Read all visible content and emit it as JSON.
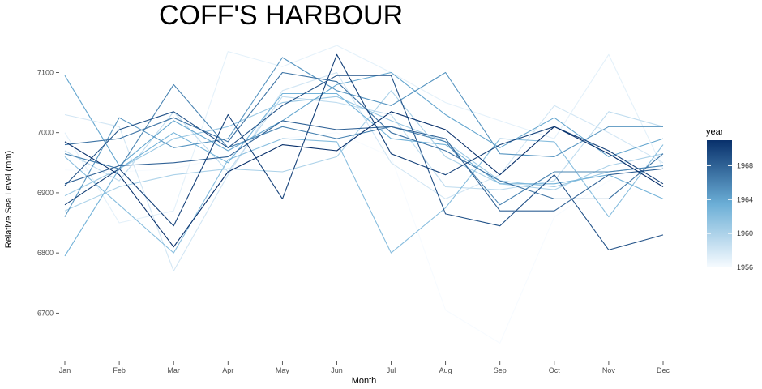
{
  "chart_data": {
    "type": "line",
    "title": "COFF'S HARBOUR",
    "xlabel": "Month",
    "ylabel": "Relative Sea Level (mm)",
    "categories": [
      "Jan",
      "Feb",
      "Mar",
      "Apr",
      "May",
      "Jun",
      "Jul",
      "Aug",
      "Sep",
      "Oct",
      "Nov",
      "Dec"
    ],
    "yticks": [
      6700,
      6800,
      6900,
      7000,
      7100
    ],
    "ylim": [
      6625,
      7160
    ],
    "grid": false,
    "legend": {
      "title": "year",
      "placement": "right",
      "type": "colorbar",
      "min": 1956,
      "max": 1971,
      "ticks": [
        1956,
        1960,
        1964,
        1968
      ],
      "color_low": "#f7fbff",
      "color_high": "#08306b"
    },
    "series": [
      {
        "year": 1956,
        "values": [
          6938,
          6935,
          6940,
          6960,
          6990,
          7000,
          6960,
          6705,
          6650,
          6860,
          6920,
          6960
        ]
      },
      {
        "year": 1957,
        "values": [
          7000,
          6850,
          6870,
          7135,
          7110,
          7145,
          7100,
          7050,
          7020,
          6990,
          7130,
          6940
        ]
      },
      {
        "year": 1958,
        "values": [
          7030,
          7010,
          6770,
          6930,
          7070,
          7100,
          6950,
          6890,
          6930,
          7045,
          7000,
          6950
        ]
      },
      {
        "year": 1959,
        "values": [
          6970,
          6920,
          7035,
          6935,
          7060,
          7050,
          7030,
          6910,
          6905,
          6920,
          7035,
          7010
        ]
      },
      {
        "year": 1960,
        "values": [
          6870,
          6910,
          6930,
          6940,
          6935,
          6960,
          7070,
          6960,
          6915,
          6905,
          6945,
          6965
        ]
      },
      {
        "year": 1961,
        "values": [
          6895,
          6940,
          6990,
          7010,
          7050,
          7060,
          7020,
          6985,
          6920,
          6910,
          6935,
          6945
        ]
      },
      {
        "year": 1962,
        "values": [
          6960,
          6880,
          6800,
          6955,
          6990,
          6985,
          6800,
          6875,
          6990,
          6985,
          6860,
          6980
        ]
      },
      {
        "year": 1963,
        "values": [
          6795,
          6940,
          7000,
          6950,
          7065,
          7065,
          6990,
          6980,
          6915,
          6915,
          6930,
          6890
        ]
      },
      {
        "year": 1964,
        "values": [
          7095,
          6945,
          7020,
          6970,
          7020,
          7080,
          7100,
          7030,
          6975,
          7025,
          6960,
          6990
        ]
      },
      {
        "year": 1965,
        "values": [
          6860,
          7025,
          6975,
          6990,
          7125,
          7070,
          7045,
          7100,
          6965,
          6960,
          7010,
          7010
        ]
      },
      {
        "year": 1966,
        "values": [
          6965,
          6940,
          7080,
          6975,
          7010,
          6990,
          7010,
          6985,
          6880,
          6935,
          6935,
          6945
        ]
      },
      {
        "year": 1967,
        "values": [
          6980,
          6990,
          7025,
          6985,
          7100,
          7085,
          7000,
          6970,
          6920,
          6890,
          6890,
          6965
        ]
      },
      {
        "year": 1968,
        "values": [
          6915,
          6945,
          6950,
          6960,
          7020,
          7005,
          7010,
          6990,
          6870,
          6870,
          6930,
          6940
        ]
      },
      {
        "year": 1969,
        "values": [
          6912,
          7005,
          7035,
          6975,
          7045,
          7095,
          7095,
          6865,
          6845,
          6930,
          6805,
          6830
        ]
      },
      {
        "year": 1970,
        "values": [
          6880,
          6940,
          6845,
          7030,
          6890,
          7130,
          6965,
          6930,
          6980,
          7010,
          6970,
          6915
        ]
      },
      {
        "year": 1971,
        "values": [
          6985,
          6930,
          6810,
          6935,
          6980,
          6970,
          7035,
          7005,
          6930,
          7010,
          6965,
          6910
        ]
      }
    ]
  }
}
